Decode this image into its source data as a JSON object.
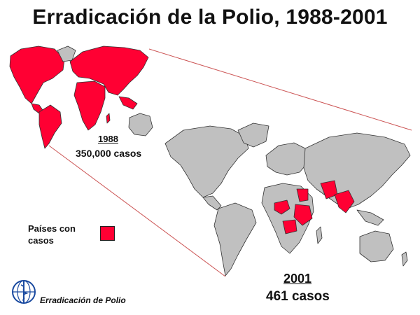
{
  "title": "Erradicación de la Polio, 1988-2001",
  "map_1988": {
    "year": "1988",
    "cases": "350,000 casos"
  },
  "map_2001": {
    "year": "2001",
    "cases": "461 casos"
  },
  "legend": {
    "label": "Países con casos",
    "color": "#ff0033"
  },
  "footer": {
    "text": "Erradicación de Polio",
    "logo": "who-emblem-icon"
  },
  "colors": {
    "polio_countries": "#ff0033",
    "other_countries": "#c0c0c0",
    "connector_lines": "#cc5555",
    "outline": "#333333"
  }
}
